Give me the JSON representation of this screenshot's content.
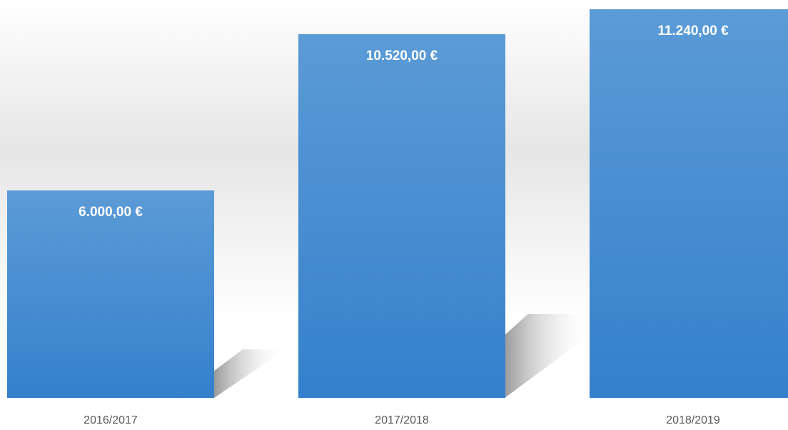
{
  "chart_data": {
    "type": "bar",
    "categories": [
      "2016/2017",
      "2017/2018",
      "2018/2019"
    ],
    "values": [
      6000,
      10520,
      11240
    ],
    "value_labels": [
      "6.000,00 €",
      "10.520,00 €",
      "11.240,00 €"
    ],
    "color": "#4a8fd4"
  }
}
